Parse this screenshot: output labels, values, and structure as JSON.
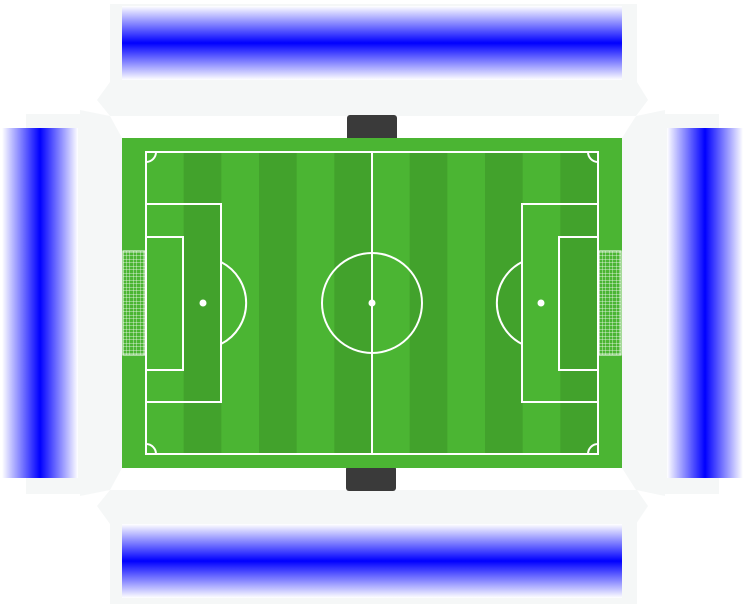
{
  "stadium": {
    "colors": {
      "background": "#ffffff",
      "concourse": "#f5f7f7",
      "stand_blue": "#0000ff",
      "pitch_light": "#4bb533",
      "pitch_dark": "#42a22c",
      "line": "#ffffff",
      "bench": "#3a3a3a",
      "net": "#ffffff"
    },
    "stands": {
      "north": {
        "icon": "seating-stand-icon"
      },
      "south": {
        "icon": "seating-stand-icon"
      },
      "west": {
        "icon": "seating-stand-icon"
      },
      "east": {
        "icon": "seating-stand-icon"
      }
    },
    "pitch": {
      "stripe_count": 13,
      "benches": [
        "team-bench-north",
        "team-bench-south"
      ],
      "goals": [
        "goal-net-left",
        "goal-net-right"
      ]
    }
  }
}
